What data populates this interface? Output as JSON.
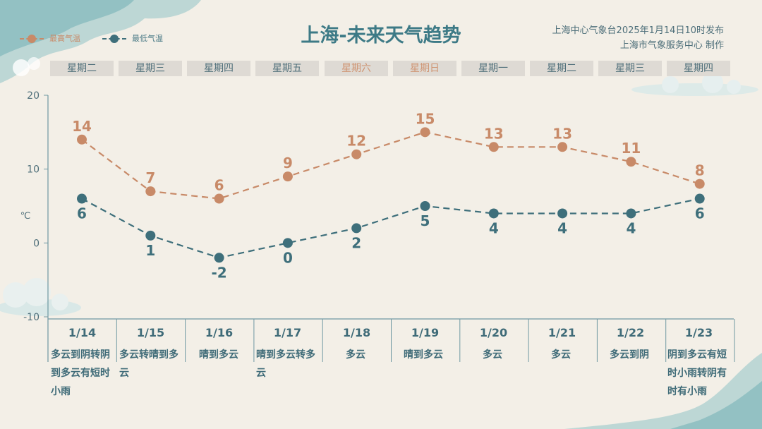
{
  "header": {
    "title": "上海-未来天气趋势",
    "issuer_line1": "上海中心气象台2025年1月14日10时发布",
    "issuer_line2": "上海市气象服务中心 制作"
  },
  "legend": {
    "high": "最高气温",
    "low": "最低气温"
  },
  "colors": {
    "high": "#c88a68",
    "low": "#3e6f7b",
    "axis": "#6f98a2",
    "weekend": "#cf9472"
  },
  "weekdays": [
    "星期二",
    "星期三",
    "星期四",
    "星期五",
    "星期六",
    "星期日",
    "星期一",
    "星期二",
    "星期三",
    "星期四"
  ],
  "dates": [
    "1/14",
    "1/15",
    "1/16",
    "1/17",
    "1/18",
    "1/19",
    "1/20",
    "1/21",
    "1/22",
    "1/23"
  ],
  "weather": [
    "多云到阴转阴到多云有短时小雨",
    "多云转晴到多云",
    "晴到多云",
    "晴到多云转多云",
    "多云",
    "晴到多云",
    "多云",
    "多云",
    "多云到阴",
    "阴到多云有短时小雨转阴有时有小雨"
  ],
  "chart_data": {
    "type": "line",
    "categories": [
      "1/14",
      "1/15",
      "1/16",
      "1/17",
      "1/18",
      "1/19",
      "1/20",
      "1/21",
      "1/22",
      "1/23"
    ],
    "series": [
      {
        "name": "最高气温",
        "values": [
          14,
          7,
          6,
          9,
          12,
          15,
          13,
          13,
          11,
          8
        ]
      },
      {
        "name": "最低气温",
        "values": [
          6,
          1,
          -2,
          0,
          2,
          5,
          4,
          4,
          4,
          6
        ]
      }
    ],
    "ylabel": "℃",
    "ylim": [
      -10,
      20
    ],
    "yticks": [
      20,
      10,
      0,
      -10
    ],
    "grid": false,
    "legend": "top-left"
  }
}
